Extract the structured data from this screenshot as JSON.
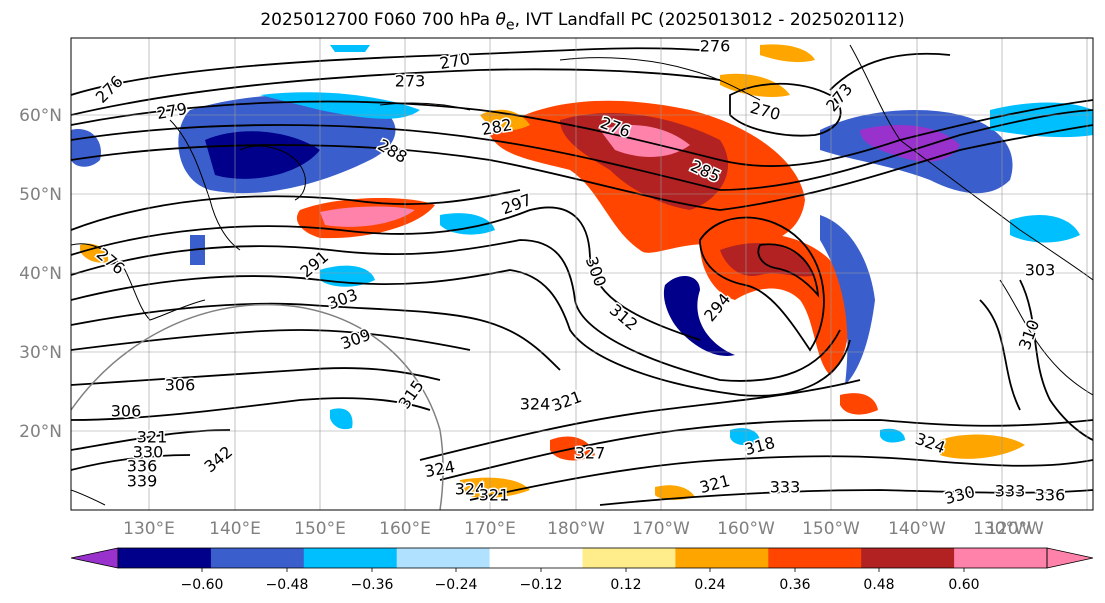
{
  "title": {
    "prefix": "2025012700 F060 700 hPa ",
    "theta": "θ",
    "theta_sub": "e",
    "suffix": ", IVT Landfall PC (2025013012 - 2025020112)"
  },
  "map": {
    "lat_labels": [
      "60°N",
      "50°N",
      "40°N",
      "30°N",
      "20°N"
    ],
    "lon_labels": [
      "130°E",
      "140°E",
      "150°E",
      "160°E",
      "170°E",
      "180°W",
      "170°W",
      "160°W",
      "150°W",
      "140°W",
      "130°W",
      "120°W"
    ],
    "contour_labels": [
      "276",
      "273",
      "270",
      "276",
      "279",
      "282",
      "276",
      "270",
      "273",
      "288",
      "285",
      "297",
      "276",
      "291",
      "303",
      "306",
      "309",
      "315",
      "312",
      "294",
      "300",
      "306",
      "321",
      "330",
      "336",
      "339",
      "342",
      "324",
      "324",
      "321",
      "324",
      "321",
      "327",
      "318",
      "321",
      "333",
      "324",
      "330",
      "333",
      "336",
      "303",
      "310"
    ]
  },
  "colorbar": {
    "tick_labels": [
      "−0.60",
      "−0.48",
      "−0.36",
      "−0.24",
      "−0.12",
      "0.12",
      "0.24",
      "0.36",
      "0.48",
      "0.60"
    ],
    "colors": [
      "#9932cc",
      "#00008b",
      "#3a5fcd",
      "#00bfff",
      "#b0e2ff",
      "#ffffff",
      "#ffec8b",
      "#ffa500",
      "#ff4500",
      "#b22222",
      "#ff82ab",
      "#ff82ab"
    ]
  }
}
